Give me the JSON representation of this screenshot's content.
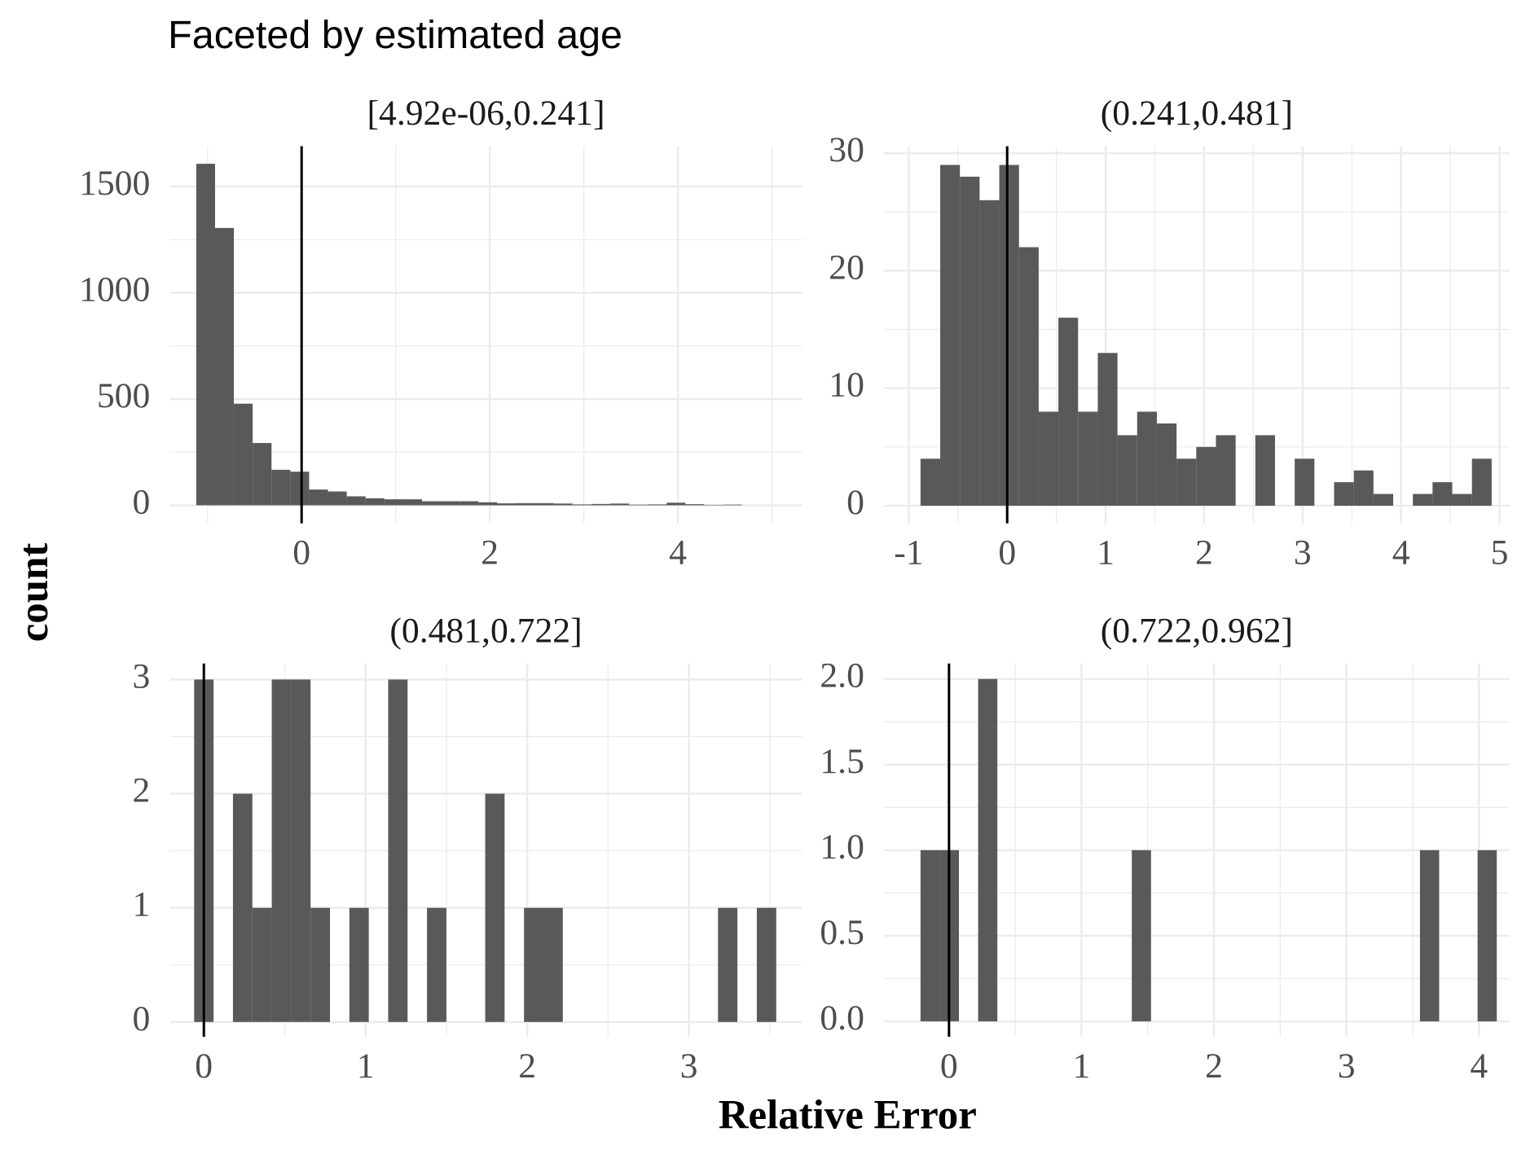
{
  "title": "Faceted by estimated age",
  "x_label": "Relative Error",
  "y_label": "count",
  "chart_data": [
    {
      "type": "histogram",
      "title": "[4.92e-06,0.241]",
      "color": "#595959",
      "vline": 0,
      "bins": [
        -1.12,
        -0.92,
        -0.72,
        -0.52,
        -0.32,
        -0.12,
        0.08,
        0.28,
        0.48,
        0.68,
        0.88,
        1.08,
        1.28,
        1.48,
        1.68,
        1.88,
        2.08,
        2.28,
        2.48,
        2.68,
        2.88,
        3.08,
        3.28,
        3.48,
        3.68,
        3.88,
        4.08,
        4.28,
        4.48,
        4.68
      ],
      "values": [
        1607,
        1305,
        478,
        293,
        167,
        158,
        74,
        65,
        42,
        33,
        28,
        28,
        19,
        19,
        19,
        14,
        9,
        10,
        10,
        8,
        4,
        6,
        8,
        3,
        4,
        12,
        5,
        2,
        3
      ],
      "xlim": [
        -1.4,
        5.32
      ],
      "ylim": [
        -85,
        1690
      ],
      "xticks": [
        0,
        2,
        4
      ],
      "yticks": [
        0,
        500,
        1000,
        1500
      ],
      "grid": true
    },
    {
      "type": "histogram",
      "title": "(0.241,0.481]",
      "color": "#595959",
      "vline": 0,
      "bins": [
        -0.88,
        -0.68,
        -0.48,
        -0.28,
        -0.08,
        0.12,
        0.32,
        0.52,
        0.72,
        0.92,
        1.12,
        1.32,
        1.52,
        1.72,
        1.92,
        2.12,
        2.32,
        2.52,
        2.72,
        2.92,
        3.12,
        3.32,
        3.52,
        3.72,
        3.92,
        4.12,
        4.32,
        4.52,
        4.72,
        4.92
      ],
      "values": [
        4,
        29,
        28,
        26,
        29,
        22,
        8,
        16,
        8,
        13,
        6,
        8,
        7,
        4,
        5,
        6,
        0,
        6,
        0,
        4,
        0,
        2,
        3,
        1,
        0,
        1,
        2,
        1,
        4
      ],
      "xlim": [
        -1.25,
        5.1
      ],
      "ylim": [
        -1.5,
        30.6
      ],
      "xticks": [
        -1,
        0,
        1,
        2,
        3,
        4,
        5
      ],
      "yticks": [
        0,
        10,
        20,
        30
      ],
      "grid": true
    },
    {
      "type": "histogram",
      "title": "(0.481,0.722]",
      "color": "#595959",
      "vline": 0,
      "bins": [
        -0.06,
        0.06,
        0.18,
        0.3,
        0.42,
        0.54,
        0.66,
        0.78,
        0.9,
        1.02,
        1.14,
        1.26,
        1.38,
        1.5,
        1.62,
        1.74,
        1.86,
        1.98,
        2.1,
        2.22,
        2.34,
        2.46,
        2.58,
        2.7,
        2.82,
        2.94,
        3.06,
        3.18,
        3.3,
        3.42,
        3.54
      ],
      "values": [
        3,
        0,
        2,
        1,
        3,
        3,
        1,
        0,
        1,
        0,
        3,
        0,
        1,
        0,
        0,
        2,
        0,
        1,
        1,
        0,
        0,
        0,
        0,
        0,
        0,
        0,
        0,
        1,
        0,
        1
      ],
      "xlim": [
        -0.21,
        3.7
      ],
      "ylim": [
        -0.13,
        3.14
      ],
      "xticks": [
        0,
        1,
        2,
        3
      ],
      "yticks": [
        0,
        1,
        2,
        3
      ],
      "grid": true
    },
    {
      "type": "histogram",
      "title": "(0.722,0.962]",
      "color": "#595959",
      "vline": 0,
      "bins": [
        -0.215,
        -0.07,
        0.075,
        0.22,
        0.365,
        0.51,
        0.655,
        0.8,
        0.945,
        1.09,
        1.235,
        1.38,
        1.525,
        1.67,
        1.815,
        1.96,
        2.105,
        2.25,
        2.395,
        2.54,
        2.685,
        2.83,
        2.975,
        3.12,
        3.265,
        3.41,
        3.555,
        3.7,
        3.845,
        3.99,
        4.135
      ],
      "values": [
        1,
        1,
        0,
        2,
        0,
        0,
        0,
        0,
        0,
        0,
        0,
        1,
        0,
        0,
        0,
        0,
        0,
        0,
        0,
        0,
        0,
        0,
        0,
        0,
        0,
        0,
        1,
        0,
        0,
        1
      ],
      "xlim": [
        -0.49,
        4.23
      ],
      "ylim": [
        -0.09,
        2.09
      ],
      "xticks": [
        0,
        1,
        2,
        3,
        4
      ],
      "yticks": [
        {
          "value": 0,
          "label": "0.0"
        },
        0.5,
        {
          "value": 1,
          "label": "1.0"
        },
        1.5,
        {
          "value": 2,
          "label": "2.0"
        }
      ],
      "grid": true
    }
  ]
}
